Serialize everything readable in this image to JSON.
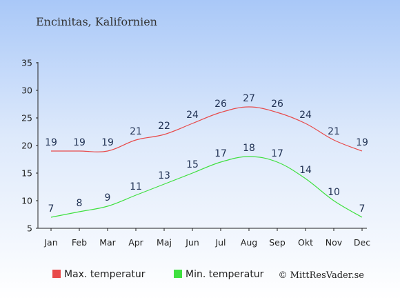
{
  "chart_data": {
    "type": "line",
    "title": "Encinitas, Kalifornien",
    "categories": [
      "Jan",
      "Feb",
      "Mar",
      "Apr",
      "Maj",
      "Jun",
      "Jul",
      "Aug",
      "Sep",
      "Okt",
      "Nov",
      "Dec"
    ],
    "ylim": [
      5,
      35
    ],
    "yticks": [
      5,
      10,
      15,
      20,
      25,
      30,
      35
    ],
    "grid": false,
    "legend_position": "bottom",
    "series": [
      {
        "name": "Max. temperatur",
        "color": "#e84a4a",
        "values": [
          19,
          19,
          19,
          21,
          22,
          24,
          26,
          27,
          26,
          24,
          21,
          19
        ]
      },
      {
        "name": "Min. temperatur",
        "color": "#3fe03f",
        "values": [
          7,
          8,
          9,
          11,
          13,
          15,
          17,
          18,
          17,
          14,
          10,
          7
        ]
      }
    ]
  },
  "credit": "© MittResVader.se"
}
